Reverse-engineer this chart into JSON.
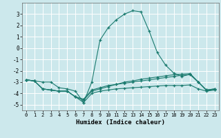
{
  "title": "",
  "xlabel": "Humidex (Indice chaleur)",
  "xlim": [
    -0.5,
    23.5
  ],
  "ylim": [
    -5.5,
    4.0
  ],
  "yticks": [
    -5,
    -4,
    -3,
    -2,
    -1,
    0,
    1,
    2,
    3
  ],
  "xticks": [
    0,
    1,
    2,
    3,
    4,
    5,
    6,
    7,
    8,
    9,
    10,
    11,
    12,
    13,
    14,
    15,
    16,
    17,
    18,
    19,
    20,
    21,
    22,
    23
  ],
  "bg_color": "#cce8ec",
  "grid_color": "#ffffff",
  "line_color": "#1a7a6e",
  "lines": [
    {
      "x": [
        0,
        1,
        2,
        3,
        4,
        5,
        6,
        7,
        8,
        9,
        10,
        11,
        12,
        13,
        14,
        15,
        16,
        17,
        18,
        19,
        20,
        21,
        22,
        23
      ],
      "y": [
        -2.8,
        -2.9,
        -3.0,
        -3.0,
        -3.5,
        -3.6,
        -3.8,
        -4.8,
        -3.0,
        0.7,
        1.8,
        2.5,
        3.0,
        3.3,
        3.2,
        1.5,
        -0.4,
        -1.5,
        -2.2,
        -2.5,
        -2.3,
        -3.0,
        -3.7,
        -3.6
      ]
    },
    {
      "x": [
        0,
        1,
        2,
        3,
        4,
        5,
        6,
        7,
        8,
        9,
        10,
        11,
        12,
        13,
        14,
        15,
        16,
        17,
        18,
        19,
        20,
        21,
        22,
        23
      ],
      "y": [
        -2.8,
        -2.9,
        -3.6,
        -3.7,
        -3.8,
        -3.8,
        -4.3,
        -4.5,
        -3.7,
        -3.5,
        -3.3,
        -3.2,
        -3.0,
        -2.9,
        -2.75,
        -2.65,
        -2.55,
        -2.45,
        -2.35,
        -2.3,
        -2.25,
        -3.0,
        -3.7,
        -3.6
      ]
    },
    {
      "x": [
        0,
        1,
        2,
        3,
        4,
        5,
        6,
        7,
        8,
        9,
        10,
        11,
        12,
        13,
        14,
        15,
        16,
        17,
        18,
        19,
        20,
        21,
        22,
        23
      ],
      "y": [
        -2.8,
        -2.9,
        -3.6,
        -3.7,
        -3.8,
        -3.8,
        -4.3,
        -4.6,
        -3.8,
        -3.6,
        -3.4,
        -3.2,
        -3.1,
        -3.0,
        -2.9,
        -2.8,
        -2.7,
        -2.6,
        -2.5,
        -2.4,
        -2.35,
        -3.0,
        -3.75,
        -3.65
      ]
    },
    {
      "x": [
        0,
        1,
        2,
        3,
        4,
        5,
        6,
        7,
        8,
        9,
        10,
        11,
        12,
        13,
        14,
        15,
        16,
        17,
        18,
        19,
        20,
        21,
        22,
        23
      ],
      "y": [
        -2.8,
        -2.9,
        -3.6,
        -3.7,
        -3.8,
        -3.8,
        -4.3,
        -4.8,
        -4.0,
        -3.8,
        -3.7,
        -3.6,
        -3.55,
        -3.5,
        -3.45,
        -3.4,
        -3.35,
        -3.3,
        -3.3,
        -3.3,
        -3.25,
        -3.6,
        -3.8,
        -3.7
      ]
    }
  ]
}
